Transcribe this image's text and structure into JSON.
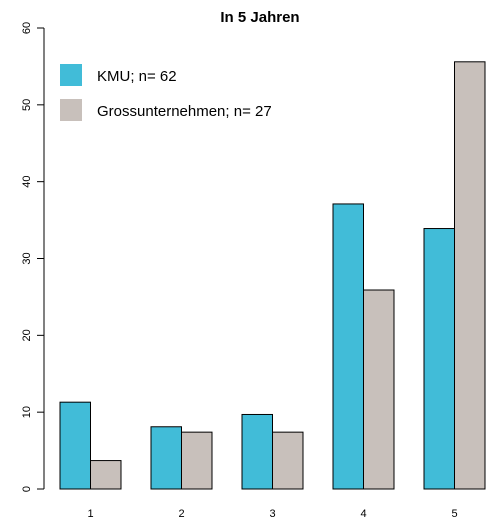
{
  "chart_data": {
    "type": "bar",
    "title": "In 5 Jahren",
    "xlabel": "",
    "ylabel": "",
    "categories": [
      "1",
      "2",
      "3",
      "4",
      "5"
    ],
    "ylim": [
      0,
      60
    ],
    "yticks": [
      "0",
      "10",
      "20",
      "30",
      "40",
      "50",
      "60"
    ],
    "grid": false,
    "legend_position": "top-left",
    "series": [
      {
        "name": "KMU; n= 62",
        "color": "#41bcd8",
        "values": [
          11.3,
          8.1,
          9.7,
          37.1,
          33.9
        ]
      },
      {
        "name": "Grossunternehmen; n= 27",
        "color": "#c8c0bb",
        "values": [
          3.7,
          7.4,
          7.4,
          25.9,
          55.6
        ]
      }
    ]
  }
}
